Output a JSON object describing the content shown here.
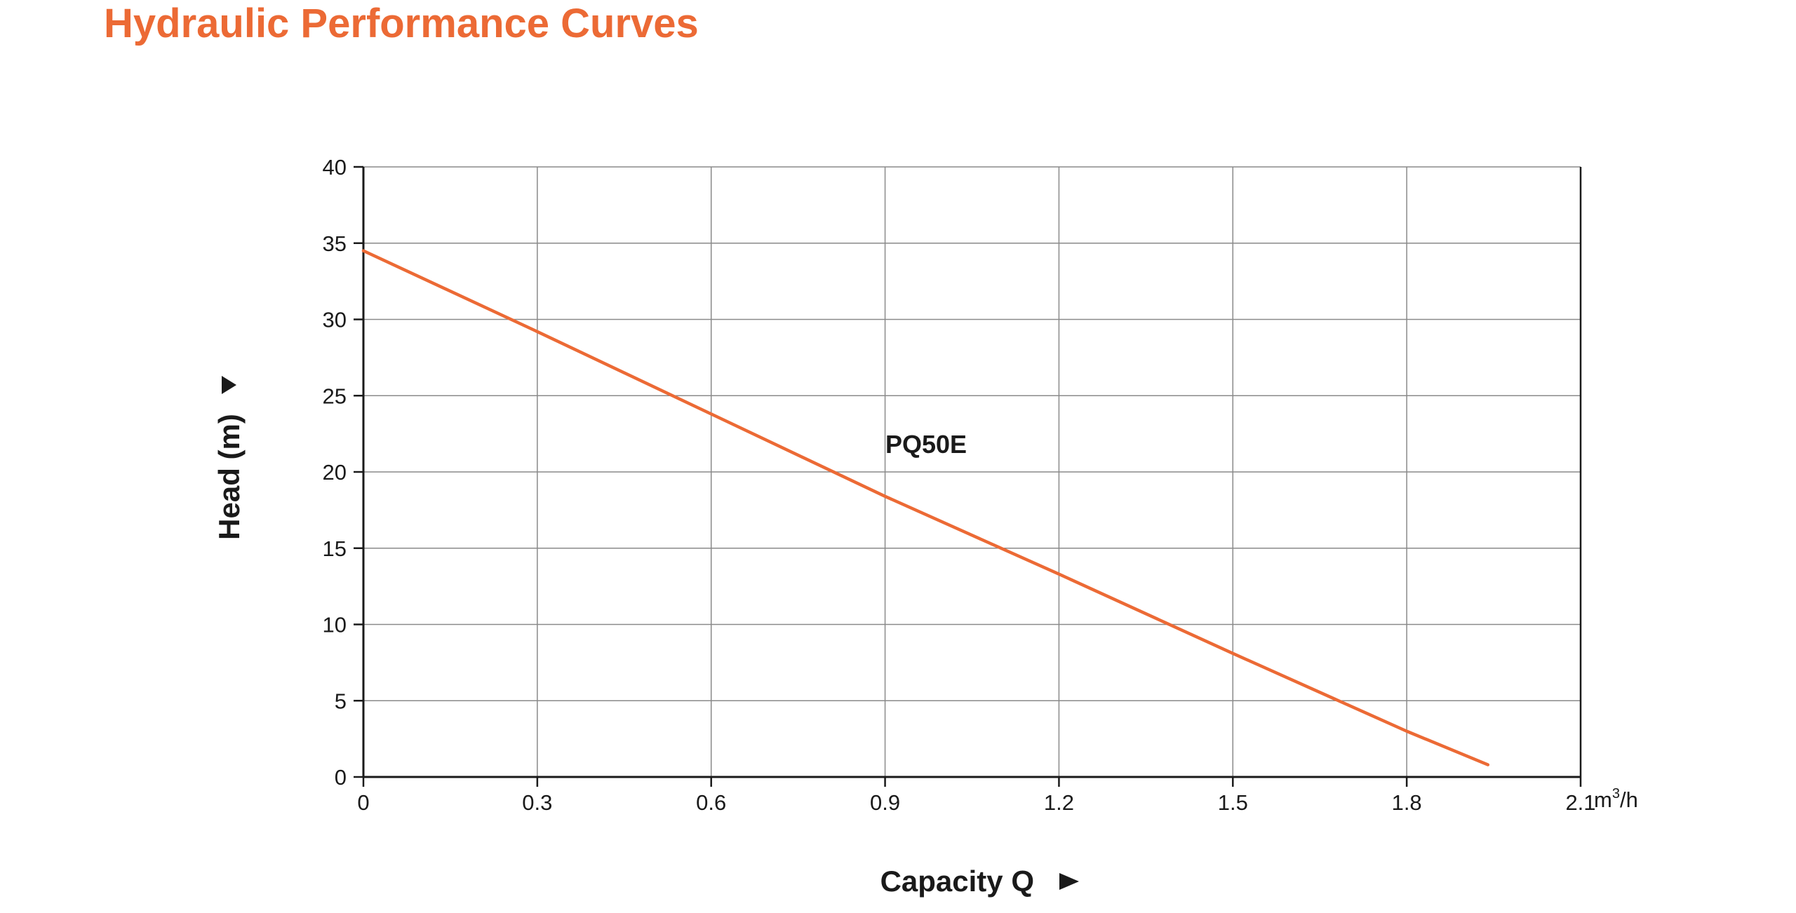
{
  "page": {
    "title": "Hydraulic Performance Curves"
  },
  "colors": {
    "accent": "#ec6a35",
    "grid": "#8a8a8a",
    "axis": "#1a1a1a",
    "text": "#1a1a1a"
  },
  "chart_data": {
    "type": "line",
    "title": "",
    "xlabel": "Capacity Q",
    "ylabel": "Head (m)",
    "xunit": "m",
    "xunit_sup": "3",
    "xunit_suffix": "/h",
    "xlim": [
      0,
      2.1
    ],
    "ylim": [
      0,
      40
    ],
    "xticks": [
      0,
      0.3,
      0.6,
      0.9,
      1.2,
      1.5,
      1.8,
      2.1
    ],
    "xtick_labels": [
      "0",
      "0.3",
      "0.6",
      "0.9",
      "1.2",
      "1.5",
      "1.8",
      "2.1"
    ],
    "yticks": [
      0,
      5,
      10,
      15,
      20,
      25,
      30,
      35,
      40
    ],
    "ytick_labels": [
      "0",
      "5",
      "10",
      "15",
      "20",
      "25",
      "30",
      "35",
      "40"
    ],
    "grid": true,
    "series": [
      {
        "name": "PQ50E",
        "color": "#ec6a35",
        "x": [
          0,
          0.3,
          0.6,
          0.9,
          1.2,
          1.5,
          1.8,
          1.94
        ],
        "y": [
          34.5,
          29.2,
          23.8,
          18.4,
          13.3,
          8.1,
          3.0,
          0.8
        ]
      }
    ]
  }
}
